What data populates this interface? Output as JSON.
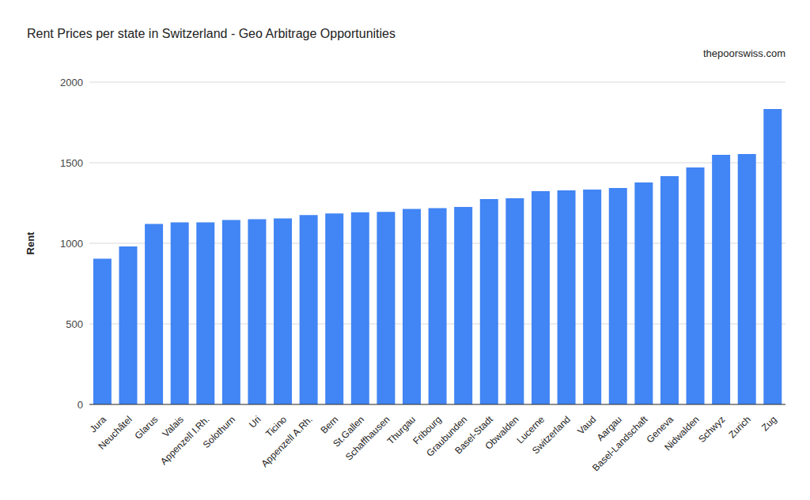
{
  "chart_data": {
    "type": "bar",
    "title": "Rent Prices per state in Switzerland - Geo Arbitrage Opportunities",
    "annotations": [
      "thepoorswiss.com"
    ],
    "ylabel": "Rent",
    "categories": [
      "Jura",
      "Neuchâtel",
      "Glarus",
      "Valais",
      "Appenzell I.Rh.",
      "Solothurn",
      "Uri",
      "Ticino",
      "Appenzell A.Rh.",
      "Bern",
      "St.Gallen",
      "Schaffhausen",
      "Thurgau",
      "Fribourg",
      "Graubunden",
      "Basel-Stadt",
      "Obwalden",
      "Lucerne",
      "Switzerland",
      "Vaud",
      "Aargau",
      "Basel-Landschaft",
      "Geneva",
      "Nidwalden",
      "Schwyz",
      "Zurich",
      "Zug"
    ],
    "values": [
      905,
      980,
      1120,
      1130,
      1130,
      1145,
      1150,
      1155,
      1175,
      1185,
      1193,
      1195,
      1213,
      1218,
      1226,
      1275,
      1280,
      1323,
      1328,
      1333,
      1343,
      1377,
      1417,
      1470,
      1549,
      1554,
      1833
    ],
    "color": "#4285f4",
    "ylim": [
      0,
      2000
    ],
    "yticks": [
      0,
      500,
      1000,
      1500,
      2000
    ],
    "grid": true
  }
}
